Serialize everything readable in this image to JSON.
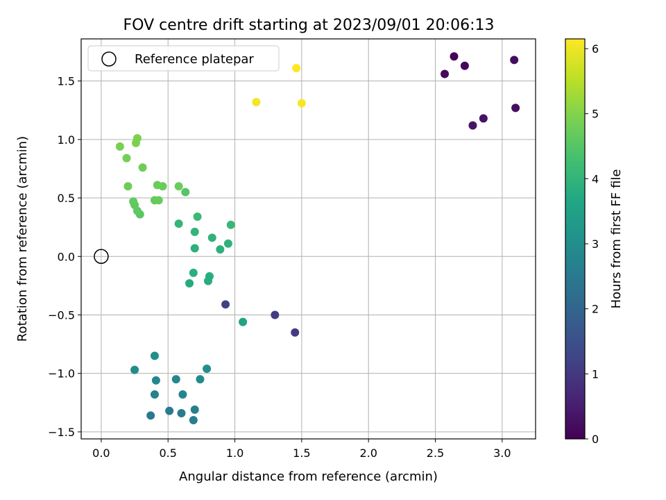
{
  "chart_data": {
    "type": "scatter",
    "title": "FOV centre drift starting at 2023/09/01 20:06:13",
    "xlabel": "Angular distance from reference (arcmin)",
    "ylabel": "Rotation from reference (arcmin)",
    "xlim": [
      -0.15,
      3.25
    ],
    "ylim": [
      -1.56,
      1.86
    ],
    "x_ticks": [
      0.0,
      0.5,
      1.0,
      1.5,
      2.0,
      2.5,
      3.0
    ],
    "x_tick_labels": [
      "0.0",
      "0.5",
      "1.0",
      "1.5",
      "2.0",
      "2.5",
      "3.0"
    ],
    "y_ticks": [
      -1.5,
      -1.0,
      -0.5,
      0.0,
      0.5,
      1.0,
      1.5
    ],
    "y_tick_labels": [
      "−1.5",
      "−1.0",
      "−0.5",
      "0.0",
      "0.5",
      "1.0",
      "1.5"
    ],
    "grid": true,
    "legend": {
      "position": "top-left",
      "entries": [
        "Reference platepar"
      ]
    },
    "reference_point": {
      "x": 0.0,
      "y": 0.0,
      "label": "Reference platepar"
    },
    "colorbar": {
      "label": "Hours from first FF file",
      "colormap": "viridis",
      "range": [
        0,
        6.15
      ],
      "ticks": [
        0,
        1,
        2,
        3,
        4,
        5,
        6
      ],
      "tick_labels": [
        "0",
        "1",
        "2",
        "3",
        "4",
        "5",
        "6"
      ]
    },
    "series": [
      {
        "name": "FOV centre",
        "points": [
          {
            "x": 2.64,
            "y": 1.71,
            "hours": 0.05
          },
          {
            "x": 2.72,
            "y": 1.63,
            "hours": 0.1
          },
          {
            "x": 2.57,
            "y": 1.56,
            "hours": 0.15
          },
          {
            "x": 3.09,
            "y": 1.68,
            "hours": 0.2
          },
          {
            "x": 3.1,
            "y": 1.27,
            "hours": 0.25
          },
          {
            "x": 2.86,
            "y": 1.18,
            "hours": 0.3
          },
          {
            "x": 2.78,
            "y": 1.12,
            "hours": 0.35
          },
          {
            "x": 1.45,
            "y": -0.65,
            "hours": 1.05
          },
          {
            "x": 1.3,
            "y": -0.5,
            "hours": 1.1
          },
          {
            "x": 0.93,
            "y": -0.41,
            "hours": 1.2
          },
          {
            "x": 0.37,
            "y": -1.36,
            "hours": 2.45
          },
          {
            "x": 0.51,
            "y": -1.32,
            "hours": 2.5
          },
          {
            "x": 0.6,
            "y": -1.34,
            "hours": 2.55
          },
          {
            "x": 0.69,
            "y": -1.4,
            "hours": 2.6
          },
          {
            "x": 0.7,
            "y": -1.31,
            "hours": 2.65
          },
          {
            "x": 0.4,
            "y": -1.18,
            "hours": 2.7
          },
          {
            "x": 0.61,
            "y": -1.18,
            "hours": 2.75
          },
          {
            "x": 0.41,
            "y": -1.06,
            "hours": 2.8
          },
          {
            "x": 0.56,
            "y": -1.05,
            "hours": 2.85
          },
          {
            "x": 0.74,
            "y": -1.05,
            "hours": 2.9
          },
          {
            "x": 0.25,
            "y": -0.97,
            "hours": 2.95
          },
          {
            "x": 0.79,
            "y": -0.96,
            "hours": 3.0
          },
          {
            "x": 0.4,
            "y": -0.85,
            "hours": 3.05
          },
          {
            "x": 1.06,
            "y": -0.56,
            "hours": 3.5
          },
          {
            "x": 0.66,
            "y": -0.23,
            "hours": 3.75
          },
          {
            "x": 0.8,
            "y": -0.21,
            "hours": 3.8
          },
          {
            "x": 0.81,
            "y": -0.17,
            "hours": 3.82
          },
          {
            "x": 0.69,
            "y": -0.14,
            "hours": 3.85
          },
          {
            "x": 0.7,
            "y": 0.07,
            "hours": 3.88
          },
          {
            "x": 0.89,
            "y": 0.06,
            "hours": 3.9
          },
          {
            "x": 0.95,
            "y": 0.11,
            "hours": 3.92
          },
          {
            "x": 0.83,
            "y": 0.16,
            "hours": 3.95
          },
          {
            "x": 0.7,
            "y": 0.21,
            "hours": 4.0
          },
          {
            "x": 0.58,
            "y": 0.28,
            "hours": 4.05
          },
          {
            "x": 0.97,
            "y": 0.27,
            "hours": 4.1
          },
          {
            "x": 0.72,
            "y": 0.34,
            "hours": 4.15
          },
          {
            "x": 0.63,
            "y": 0.55,
            "hours": 4.5
          },
          {
            "x": 0.29,
            "y": 0.36,
            "hours": 4.55
          },
          {
            "x": 0.27,
            "y": 0.39,
            "hours": 4.6
          },
          {
            "x": 0.25,
            "y": 0.44,
            "hours": 4.62
          },
          {
            "x": 0.24,
            "y": 0.47,
            "hours": 4.65
          },
          {
            "x": 0.4,
            "y": 0.48,
            "hours": 4.68
          },
          {
            "x": 0.43,
            "y": 0.48,
            "hours": 4.7
          },
          {
            "x": 0.46,
            "y": 0.6,
            "hours": 4.72
          },
          {
            "x": 0.42,
            "y": 0.61,
            "hours": 4.74
          },
          {
            "x": 0.58,
            "y": 0.6,
            "hours": 4.76
          },
          {
            "x": 0.2,
            "y": 0.6,
            "hours": 4.78
          },
          {
            "x": 0.31,
            "y": 0.76,
            "hours": 4.8
          },
          {
            "x": 0.19,
            "y": 0.84,
            "hours": 4.85
          },
          {
            "x": 0.14,
            "y": 0.94,
            "hours": 4.9
          },
          {
            "x": 0.26,
            "y": 0.97,
            "hours": 4.92
          },
          {
            "x": 0.27,
            "y": 1.01,
            "hours": 4.94
          },
          {
            "x": 1.16,
            "y": 1.32,
            "hours": 6.05
          },
          {
            "x": 1.5,
            "y": 1.31,
            "hours": 6.1
          },
          {
            "x": 1.46,
            "y": 1.61,
            "hours": 6.15
          }
        ]
      }
    ]
  }
}
